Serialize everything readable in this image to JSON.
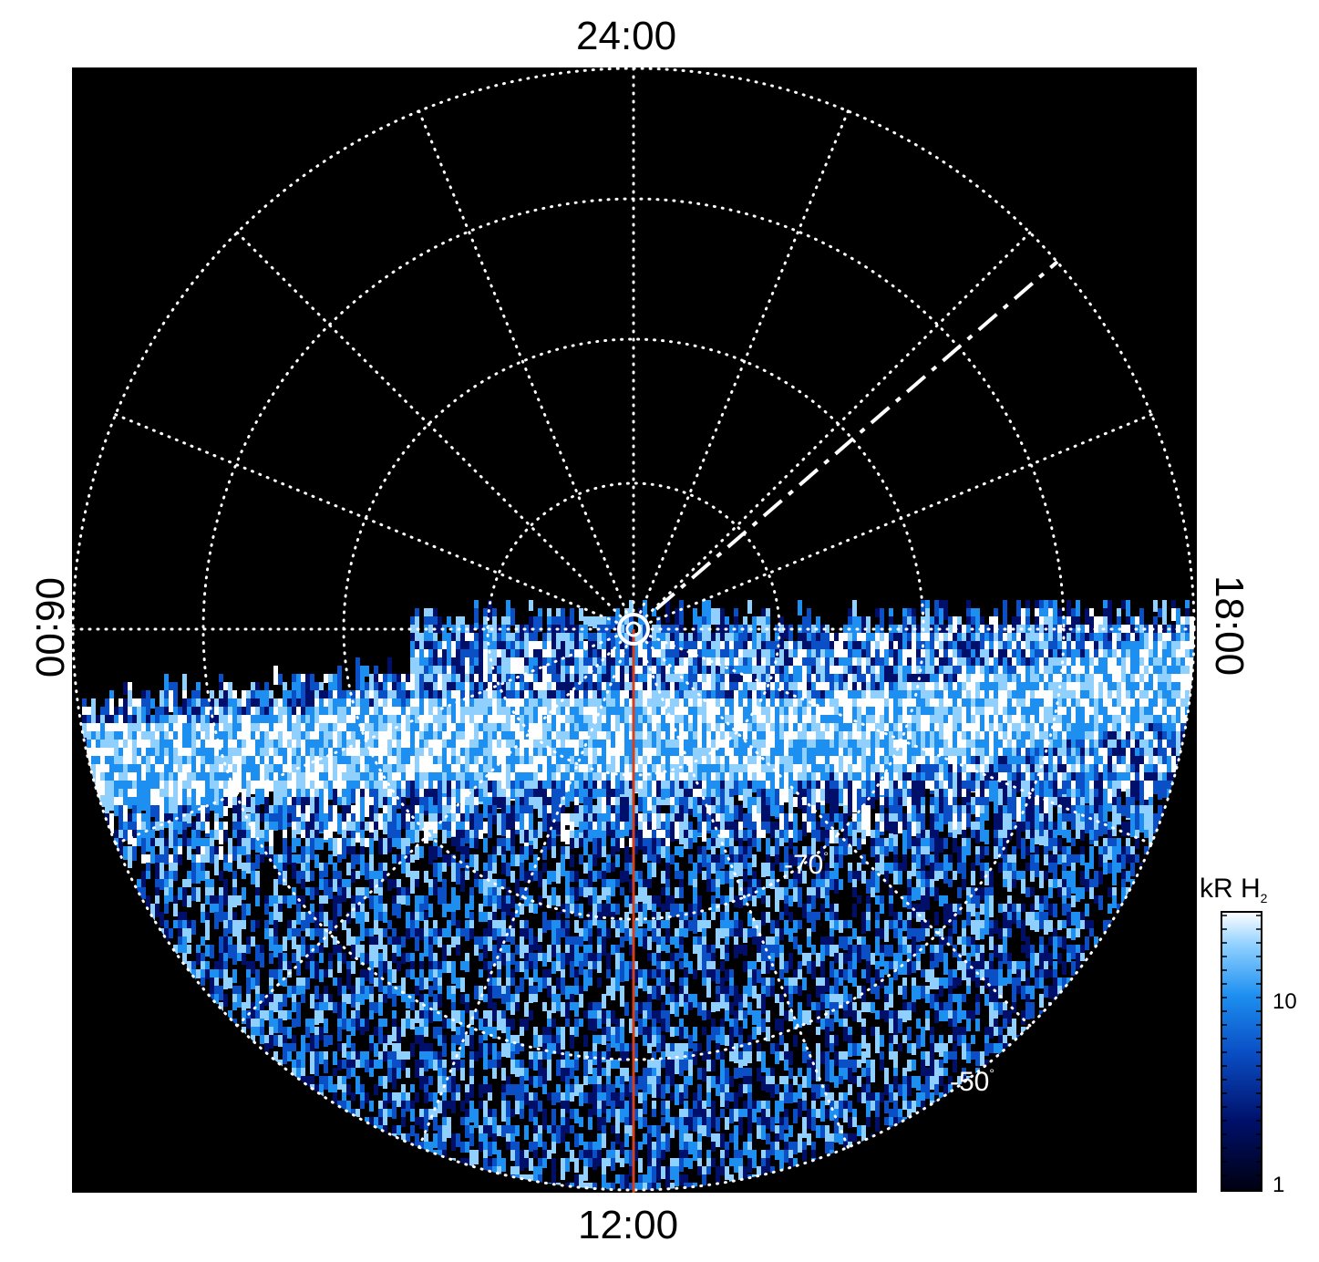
{
  "time_labels": {
    "top": "24:00",
    "bottom": "12:00",
    "left": "06:00",
    "right": "18:00"
  },
  "latitude_labels": [
    "-70",
    "-50"
  ],
  "degree_symbol": "°",
  "colorbar": {
    "title_main": "kR H",
    "title_sub": "2",
    "ticks": [
      "10",
      "1"
    ],
    "scale": "log",
    "range": [
      1,
      25
    ]
  },
  "colors": {
    "background": "#000000",
    "grid": "#ffffff",
    "meridian_line": "#d2401e",
    "colormap": [
      "#000010",
      "#00106a",
      "#0a4fc6",
      "#1d8ff0",
      "#8fd0ff",
      "#ffffff"
    ]
  }
}
